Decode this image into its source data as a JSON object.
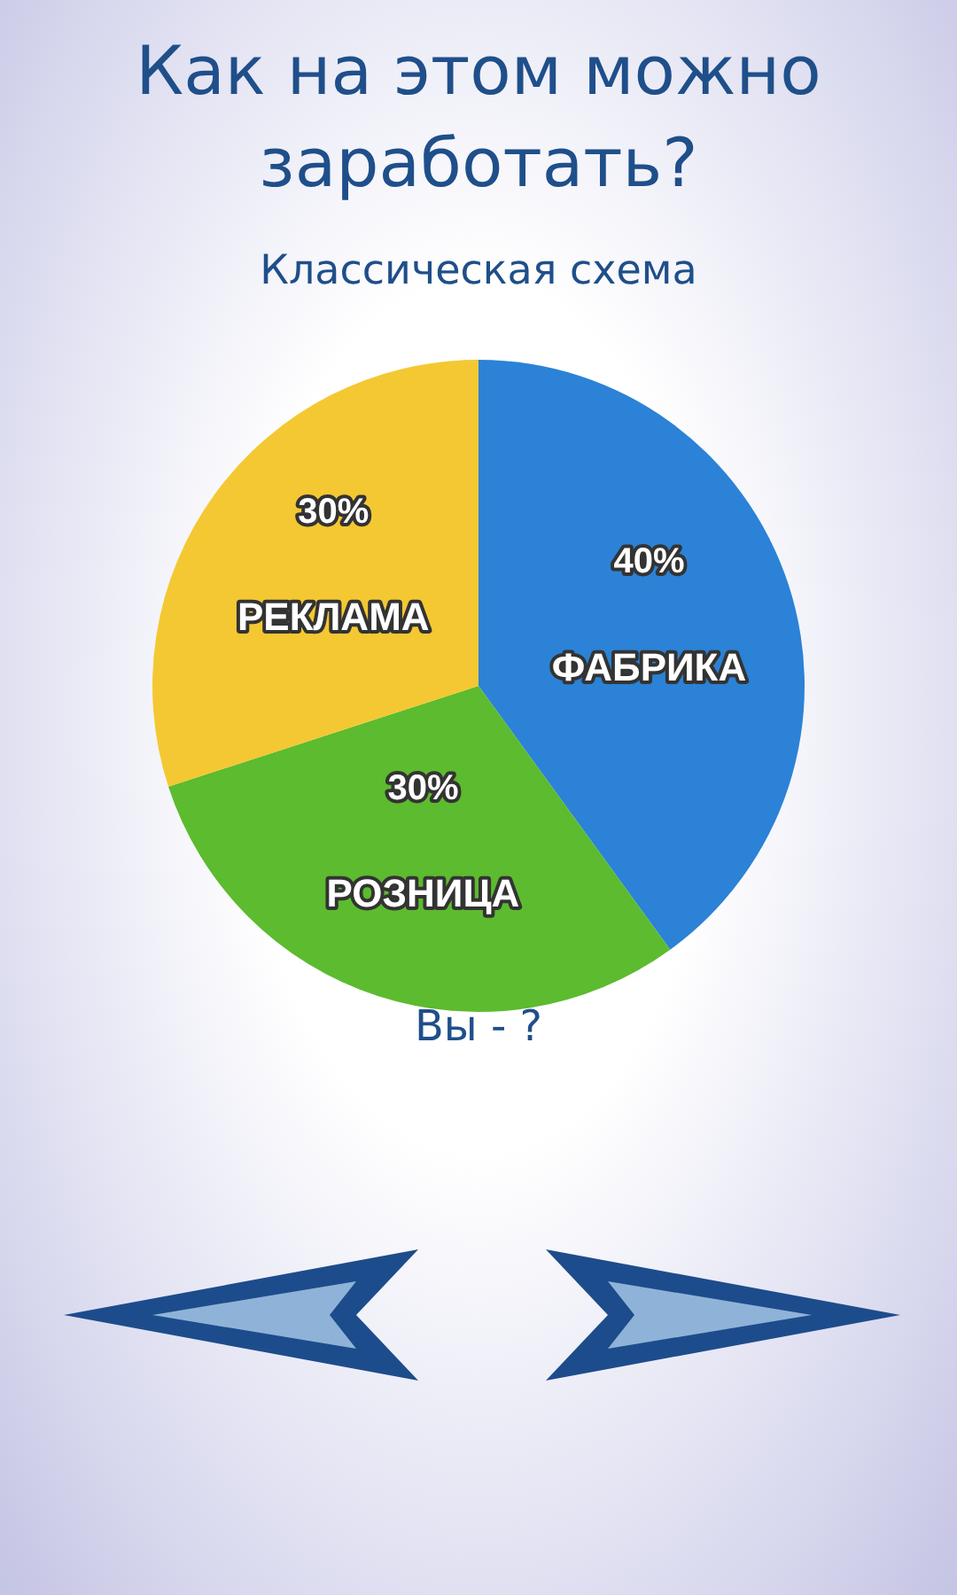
{
  "chart_data": {
    "type": "pie",
    "title": "Как на этом можно заработать?",
    "subtitle": "Классическая схема",
    "categories": [
      "ФАБРИКА",
      "РОЗНИЦА",
      "РЕКЛАМА"
    ],
    "values": [
      40,
      30,
      30
    ],
    "value_labels": [
      "40%",
      "30%",
      "30%"
    ],
    "colors": [
      "#2b82d6",
      "#5cbb2e",
      "#f4c832"
    ],
    "legend": false,
    "annotations": [
      "Вы - ?"
    ]
  }
}
